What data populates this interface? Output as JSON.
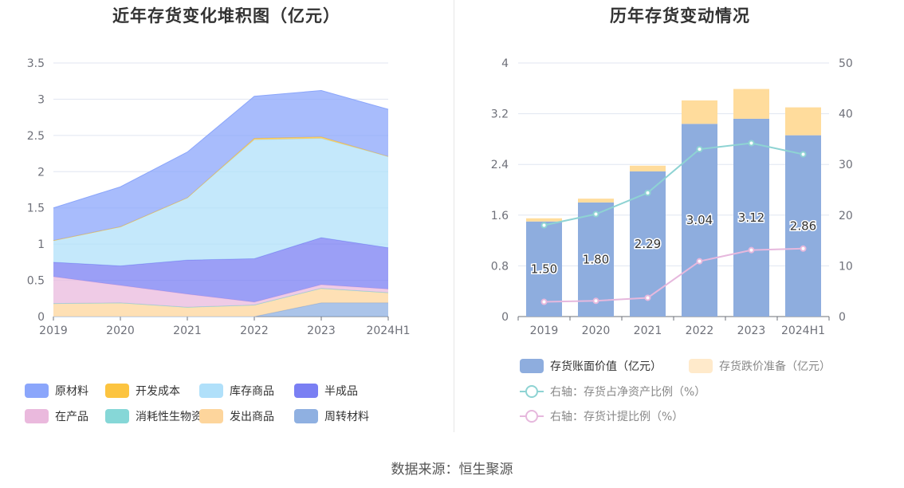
{
  "source": "数据来源：恒生聚源",
  "chart_data": [
    {
      "type": "area",
      "title": "近年存货变化堆积图（亿元）",
      "categories": [
        "2019",
        "2020",
        "2021",
        "2022",
        "2023",
        "2024H1"
      ],
      "ylim": [
        0,
        3.5
      ],
      "y_ticks": [
        "0",
        "0.5",
        "1",
        "1.5",
        "2",
        "2.5",
        "3",
        "3.5"
      ],
      "stacked": true,
      "grid": true,
      "legend_position": "bottom",
      "series": [
        {
          "name": "原材料",
          "color": "#8ba6fb",
          "values": [
            0.45,
            0.55,
            0.63,
            0.58,
            0.64,
            0.65
          ]
        },
        {
          "name": "开发成本",
          "color": "#fcc440",
          "values": [
            0,
            0,
            0,
            0.02,
            0.02,
            0
          ]
        },
        {
          "name": "库存商品",
          "color": "#b0e0fa",
          "values": [
            0.3,
            0.54,
            0.86,
            1.64,
            1.37,
            1.26
          ]
        },
        {
          "name": "半成品",
          "color": "#7a7ff3",
          "values": [
            0.2,
            0.27,
            0.47,
            0.6,
            0.65,
            0.57
          ]
        },
        {
          "name": "在产品",
          "color": "#eab9dd",
          "values": [
            0.37,
            0.24,
            0.18,
            0.04,
            0.05,
            0.05
          ]
        },
        {
          "name": "消耗性生物资产",
          "color": "#86d7d7",
          "values": [
            0,
            0,
            0,
            0,
            0,
            0
          ]
        },
        {
          "name": "发出商品",
          "color": "#fdd59c",
          "values": [
            0.18,
            0.19,
            0.13,
            0.16,
            0.2,
            0.14
          ]
        },
        {
          "name": "周转材料",
          "color": "#8fb0e1",
          "values": [
            0,
            0,
            0,
            0,
            0.19,
            0.19
          ]
        }
      ]
    },
    {
      "type": "bar",
      "title": "历年存货变动情况",
      "categories": [
        "2019",
        "2020",
        "2021",
        "2022",
        "2023",
        "2024H1"
      ],
      "ylim": [
        0,
        4
      ],
      "y_ticks": [
        "0",
        "0.8",
        "1.6",
        "2.4",
        "3.2",
        "4"
      ],
      "y2lim": [
        0,
        50
      ],
      "y2_ticks": [
        "0",
        "10",
        "20",
        "30",
        "40",
        "50"
      ],
      "grid": true,
      "legend_position": "bottom",
      "series": [
        {
          "name": "存货账面价值（亿元）",
          "type": "bar",
          "color": "#8eadde",
          "values": [
            1.5,
            1.8,
            2.29,
            3.04,
            3.12,
            2.86
          ],
          "labels": [
            "1.50",
            "1.80",
            "2.29",
            "3.04",
            "3.12",
            "2.86"
          ]
        },
        {
          "name": "存货跌价准备（亿元）",
          "type": "bar",
          "color": "#ffdc9c",
          "values": [
            0.05,
            0.06,
            0.09,
            0.37,
            0.47,
            0.44
          ]
        },
        {
          "name": "右轴：存货占净资产比例（%）",
          "type": "line",
          "axis": "right",
          "color": "#8ed3d3",
          "values": [
            18,
            20.2,
            24.4,
            33,
            34.2,
            32
          ]
        },
        {
          "name": "右轴：存货计提比例（%）",
          "type": "line",
          "axis": "right",
          "color": "#e6b8dd",
          "values": [
            2.9,
            3.1,
            3.7,
            10.9,
            13.1,
            13.4
          ]
        }
      ]
    }
  ]
}
